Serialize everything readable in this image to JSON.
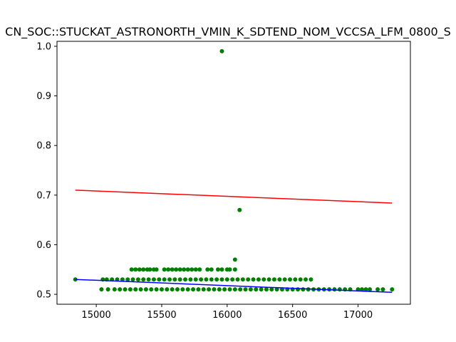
{
  "chart_data": {
    "type": "scatter",
    "title": "CN_SOC::STUCKAT_ASTRONORTH_VMIN_K_SDTEND_NOM_VCCSA_LFM_0800_S",
    "xlabel": "",
    "ylabel": "",
    "xlim": [
      14700,
      17400
    ],
    "ylim": [
      0.48,
      1.01
    ],
    "x_ticks": [
      15000,
      15500,
      16000,
      16500,
      17000
    ],
    "x_tick_labels": [
      "15000",
      "15500",
      "16000",
      "16500",
      "17000"
    ],
    "y_ticks": [
      0.5,
      0.6,
      0.7,
      0.8,
      0.9,
      1.0
    ],
    "y_tick_labels": [
      "0.5",
      "0.6",
      "0.7",
      "0.8",
      "0.9",
      "1.0"
    ],
    "grid": false,
    "colors": {
      "points": "#008000",
      "upper_line": "#ff0000",
      "lower_line": "#0000ff",
      "axes": "#000000"
    },
    "points": [
      {
        "x": 14840,
        "y": 0.53
      },
      {
        "x": 15960,
        "y": 0.99
      },
      {
        "x": 16095,
        "y": 0.67
      },
      {
        "x": 16060,
        "y": 0.57
      },
      {
        "x": 15270,
        "y": 0.55
      },
      {
        "x": 15300,
        "y": 0.55
      },
      {
        "x": 15330,
        "y": 0.55
      },
      {
        "x": 15360,
        "y": 0.55
      },
      {
        "x": 15390,
        "y": 0.55
      },
      {
        "x": 15410,
        "y": 0.55
      },
      {
        "x": 15440,
        "y": 0.55
      },
      {
        "x": 15460,
        "y": 0.55
      },
      {
        "x": 15520,
        "y": 0.55
      },
      {
        "x": 15550,
        "y": 0.55
      },
      {
        "x": 15580,
        "y": 0.55
      },
      {
        "x": 15610,
        "y": 0.55
      },
      {
        "x": 15640,
        "y": 0.55
      },
      {
        "x": 15670,
        "y": 0.55
      },
      {
        "x": 15700,
        "y": 0.55
      },
      {
        "x": 15730,
        "y": 0.55
      },
      {
        "x": 15760,
        "y": 0.55
      },
      {
        "x": 15790,
        "y": 0.55
      },
      {
        "x": 15850,
        "y": 0.55
      },
      {
        "x": 15880,
        "y": 0.55
      },
      {
        "x": 15930,
        "y": 0.55
      },
      {
        "x": 15960,
        "y": 0.55
      },
      {
        "x": 16000,
        "y": 0.55
      },
      {
        "x": 16020,
        "y": 0.55
      },
      {
        "x": 16060,
        "y": 0.55
      },
      {
        "x": 15050,
        "y": 0.53
      },
      {
        "x": 15080,
        "y": 0.53
      },
      {
        "x": 15120,
        "y": 0.53
      },
      {
        "x": 15160,
        "y": 0.53
      },
      {
        "x": 15200,
        "y": 0.53
      },
      {
        "x": 15240,
        "y": 0.53
      },
      {
        "x": 15280,
        "y": 0.53
      },
      {
        "x": 15320,
        "y": 0.53
      },
      {
        "x": 15360,
        "y": 0.53
      },
      {
        "x": 15400,
        "y": 0.53
      },
      {
        "x": 15440,
        "y": 0.53
      },
      {
        "x": 15480,
        "y": 0.53
      },
      {
        "x": 15520,
        "y": 0.53
      },
      {
        "x": 15560,
        "y": 0.53
      },
      {
        "x": 15600,
        "y": 0.53
      },
      {
        "x": 15640,
        "y": 0.53
      },
      {
        "x": 15680,
        "y": 0.53
      },
      {
        "x": 15720,
        "y": 0.53
      },
      {
        "x": 15760,
        "y": 0.53
      },
      {
        "x": 15800,
        "y": 0.53
      },
      {
        "x": 15840,
        "y": 0.53
      },
      {
        "x": 15880,
        "y": 0.53
      },
      {
        "x": 15920,
        "y": 0.53
      },
      {
        "x": 15960,
        "y": 0.53
      },
      {
        "x": 16000,
        "y": 0.53
      },
      {
        "x": 16040,
        "y": 0.53
      },
      {
        "x": 16080,
        "y": 0.53
      },
      {
        "x": 16120,
        "y": 0.53
      },
      {
        "x": 16160,
        "y": 0.53
      },
      {
        "x": 16200,
        "y": 0.53
      },
      {
        "x": 16240,
        "y": 0.53
      },
      {
        "x": 16280,
        "y": 0.53
      },
      {
        "x": 16320,
        "y": 0.53
      },
      {
        "x": 16360,
        "y": 0.53
      },
      {
        "x": 16400,
        "y": 0.53
      },
      {
        "x": 16440,
        "y": 0.53
      },
      {
        "x": 16480,
        "y": 0.53
      },
      {
        "x": 16520,
        "y": 0.53
      },
      {
        "x": 16560,
        "y": 0.53
      },
      {
        "x": 16600,
        "y": 0.53
      },
      {
        "x": 16640,
        "y": 0.53
      },
      {
        "x": 15040,
        "y": 0.51
      },
      {
        "x": 15090,
        "y": 0.51
      },
      {
        "x": 15140,
        "y": 0.51
      },
      {
        "x": 15180,
        "y": 0.51
      },
      {
        "x": 15220,
        "y": 0.51
      },
      {
        "x": 15260,
        "y": 0.51
      },
      {
        "x": 15300,
        "y": 0.51
      },
      {
        "x": 15340,
        "y": 0.51
      },
      {
        "x": 15380,
        "y": 0.51
      },
      {
        "x": 15420,
        "y": 0.51
      },
      {
        "x": 15460,
        "y": 0.51
      },
      {
        "x": 15500,
        "y": 0.51
      },
      {
        "x": 15540,
        "y": 0.51
      },
      {
        "x": 15580,
        "y": 0.51
      },
      {
        "x": 15620,
        "y": 0.51
      },
      {
        "x": 15660,
        "y": 0.51
      },
      {
        "x": 15700,
        "y": 0.51
      },
      {
        "x": 15740,
        "y": 0.51
      },
      {
        "x": 15780,
        "y": 0.51
      },
      {
        "x": 15820,
        "y": 0.51
      },
      {
        "x": 15860,
        "y": 0.51
      },
      {
        "x": 15900,
        "y": 0.51
      },
      {
        "x": 15940,
        "y": 0.51
      },
      {
        "x": 15980,
        "y": 0.51
      },
      {
        "x": 16020,
        "y": 0.51
      },
      {
        "x": 16060,
        "y": 0.51
      },
      {
        "x": 16100,
        "y": 0.51
      },
      {
        "x": 16140,
        "y": 0.51
      },
      {
        "x": 16180,
        "y": 0.51
      },
      {
        "x": 16220,
        "y": 0.51
      },
      {
        "x": 16260,
        "y": 0.51
      },
      {
        "x": 16300,
        "y": 0.51
      },
      {
        "x": 16340,
        "y": 0.51
      },
      {
        "x": 16380,
        "y": 0.51
      },
      {
        "x": 16420,
        "y": 0.51
      },
      {
        "x": 16460,
        "y": 0.51
      },
      {
        "x": 16500,
        "y": 0.51
      },
      {
        "x": 16540,
        "y": 0.51
      },
      {
        "x": 16580,
        "y": 0.51
      },
      {
        "x": 16620,
        "y": 0.51
      },
      {
        "x": 16660,
        "y": 0.51
      },
      {
        "x": 16700,
        "y": 0.51
      },
      {
        "x": 16740,
        "y": 0.51
      },
      {
        "x": 16780,
        "y": 0.51
      },
      {
        "x": 16820,
        "y": 0.51
      },
      {
        "x": 16860,
        "y": 0.51
      },
      {
        "x": 16900,
        "y": 0.51
      },
      {
        "x": 16940,
        "y": 0.51
      },
      {
        "x": 17000,
        "y": 0.51
      },
      {
        "x": 17030,
        "y": 0.51
      },
      {
        "x": 17060,
        "y": 0.51
      },
      {
        "x": 17090,
        "y": 0.51
      },
      {
        "x": 17150,
        "y": 0.51
      },
      {
        "x": 17190,
        "y": 0.51
      },
      {
        "x": 17260,
        "y": 0.51
      }
    ],
    "lines": [
      {
        "color": "#ff0000",
        "x": [
          14840,
          17260
        ],
        "y": [
          0.71,
          0.684
        ]
      },
      {
        "color": "#0000ff",
        "x": [
          14840,
          17260
        ],
        "y": [
          0.53,
          0.504
        ]
      }
    ]
  }
}
